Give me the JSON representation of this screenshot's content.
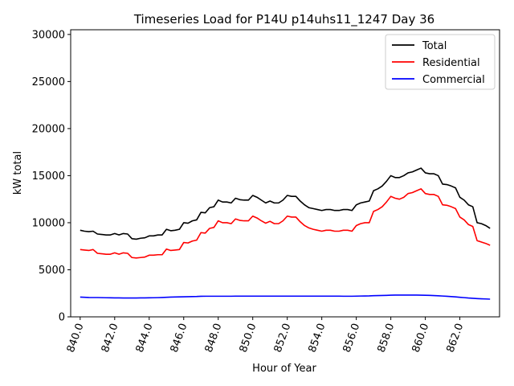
{
  "chart_data": {
    "type": "line",
    "title": "Timeseries Load for P14U p14uhs11_1247  Day 36",
    "xlabel": "Hour of Year",
    "ylabel": "kW total",
    "xlim": [
      839.45,
      864.3
    ],
    "ylim": [
      0,
      30500
    ],
    "xticks": [
      840,
      842,
      844,
      846,
      848,
      850,
      852,
      854,
      856,
      858,
      860,
      862
    ],
    "xtick_labels": [
      "840.0",
      "842.0",
      "844.0",
      "846.0",
      "848.0",
      "850.0",
      "852.0",
      "854.0",
      "856.0",
      "858.0",
      "860.0",
      "862.0"
    ],
    "yticks": [
      0,
      5000,
      10000,
      15000,
      20000,
      25000,
      30000
    ],
    "ytick_labels": [
      "0",
      "5000",
      "10000",
      "15000",
      "20000",
      "25000",
      "30000"
    ],
    "legend_position": "top-right",
    "x": [
      840.0,
      840.25,
      840.5,
      840.75,
      841.0,
      841.25,
      841.5,
      841.75,
      842.0,
      842.25,
      842.5,
      842.75,
      843.0,
      843.25,
      843.5,
      843.75,
      844.0,
      844.25,
      844.5,
      844.75,
      845.0,
      845.25,
      845.5,
      845.75,
      846.0,
      846.25,
      846.5,
      846.75,
      847.0,
      847.25,
      847.5,
      847.75,
      848.0,
      848.25,
      848.5,
      848.75,
      849.0,
      849.25,
      849.5,
      849.75,
      850.0,
      850.25,
      850.5,
      850.75,
      851.0,
      851.25,
      851.5,
      851.75,
      852.0,
      852.25,
      852.5,
      852.75,
      853.0,
      853.25,
      853.5,
      853.75,
      854.0,
      854.25,
      854.5,
      854.75,
      855.0,
      855.25,
      855.5,
      855.75,
      856.0,
      856.25,
      856.5,
      856.75,
      857.0,
      857.25,
      857.5,
      857.75,
      858.0,
      858.25,
      858.5,
      858.75,
      859.0,
      859.25,
      859.5,
      859.75,
      860.0,
      860.25,
      860.5,
      860.75,
      861.0,
      861.25,
      861.5,
      861.75,
      862.0,
      862.25,
      862.5,
      862.75,
      863.0,
      863.25,
      863.5,
      863.75
    ],
    "series": [
      {
        "name": "Total",
        "color": "#000000",
        "values": [
          9200,
          9100,
          9050,
          9100,
          8800,
          8750,
          8700,
          8700,
          8850,
          8700,
          8850,
          8800,
          8300,
          8250,
          8350,
          8400,
          8600,
          8600,
          8700,
          8700,
          9300,
          9150,
          9200,
          9300,
          10000,
          9950,
          10200,
          10300,
          11100,
          11050,
          11600,
          11700,
          12400,
          12200,
          12200,
          12100,
          12600,
          12450,
          12400,
          12400,
          12900,
          12700,
          12400,
          12100,
          12300,
          12100,
          12100,
          12400,
          12900,
          12800,
          12800,
          12300,
          11900,
          11600,
          11500,
          11400,
          11300,
          11400,
          11400,
          11300,
          11300,
          11400,
          11400,
          11300,
          11900,
          12100,
          12200,
          12300,
          13400,
          13600,
          13900,
          14400,
          15000,
          14800,
          14800,
          15000,
          15300,
          15400,
          15600,
          15800,
          15300,
          15200,
          15200,
          15000,
          14100,
          14050,
          13900,
          13700,
          12700,
          12400,
          11900,
          11700,
          10000,
          9900,
          9700,
          9400
        ]
      },
      {
        "name": "Residential",
        "color": "#ff0000",
        "values": [
          7150,
          7100,
          7050,
          7150,
          6750,
          6700,
          6650,
          6650,
          6800,
          6650,
          6800,
          6750,
          6300,
          6250,
          6300,
          6350,
          6550,
          6550,
          6600,
          6600,
          7200,
          7050,
          7100,
          7150,
          7900,
          7850,
          8050,
          8150,
          8950,
          8900,
          9400,
          9500,
          10200,
          10000,
          10000,
          9900,
          10400,
          10250,
          10200,
          10200,
          10700,
          10500,
          10200,
          9950,
          10150,
          9900,
          9900,
          10200,
          10700,
          10600,
          10600,
          10100,
          9700,
          9450,
          9300,
          9200,
          9100,
          9200,
          9200,
          9100,
          9100,
          9200,
          9200,
          9100,
          9700,
          9900,
          10000,
          10000,
          11200,
          11400,
          11700,
          12200,
          12800,
          12600,
          12500,
          12700,
          13100,
          13200,
          13400,
          13600,
          13100,
          13000,
          13000,
          12800,
          11900,
          11850,
          11700,
          11500,
          10600,
          10300,
          9800,
          9600,
          8100,
          7950,
          7800,
          7600
        ]
      },
      {
        "name": "Commercial",
        "color": "#0000ff",
        "values": [
          2100,
          2080,
          2060,
          2050,
          2050,
          2040,
          2030,
          2020,
          2010,
          2010,
          2000,
          2000,
          2000,
          2000,
          2010,
          2010,
          2020,
          2030,
          2040,
          2060,
          2080,
          2100,
          2110,
          2120,
          2130,
          2140,
          2150,
          2160,
          2180,
          2190,
          2190,
          2190,
          2190,
          2190,
          2190,
          2190,
          2200,
          2200,
          2200,
          2200,
          2200,
          2200,
          2200,
          2200,
          2200,
          2200,
          2200,
          2200,
          2200,
          2200,
          2200,
          2200,
          2200,
          2200,
          2200,
          2200,
          2200,
          2200,
          2200,
          2200,
          2200,
          2190,
          2190,
          2190,
          2200,
          2210,
          2220,
          2230,
          2250,
          2260,
          2270,
          2280,
          2300,
          2310,
          2310,
          2310,
          2310,
          2310,
          2310,
          2300,
          2290,
          2280,
          2260,
          2240,
          2210,
          2180,
          2150,
          2120,
          2080,
          2040,
          2000,
          1970,
          1940,
          1920,
          1900,
          1880
        ]
      }
    ]
  }
}
